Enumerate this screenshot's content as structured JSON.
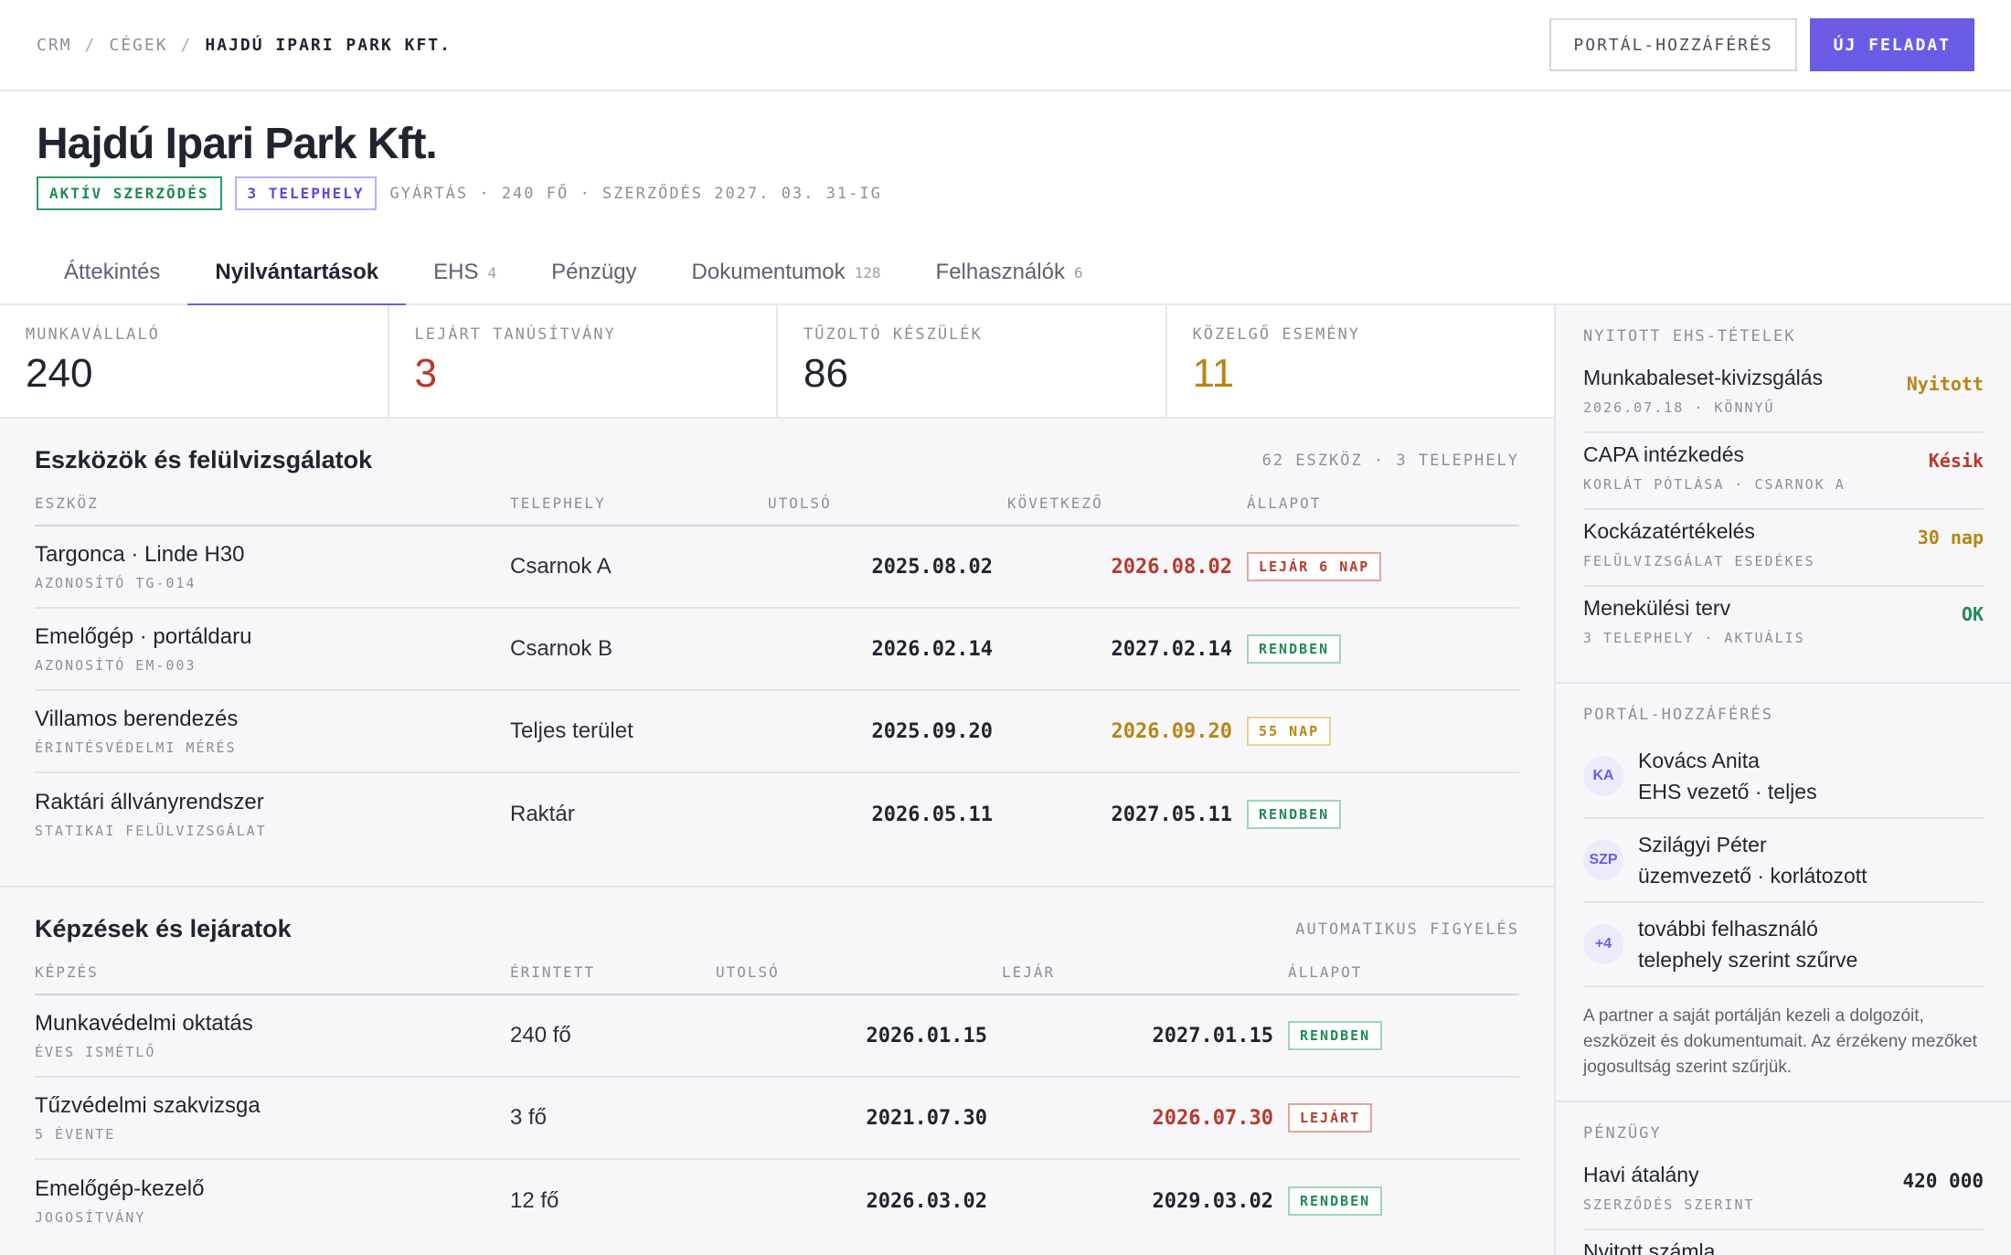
{
  "breadcrumb": {
    "root": "CRM",
    "parent": "CÉGEK",
    "current": "HAJDÚ IPARI PARK KFT.",
    "sep": "/"
  },
  "actions": {
    "portal": "PORTÁL-HOZZÁFÉRÉS",
    "new_task": "ÚJ FELADAT"
  },
  "company": {
    "name": "Hajdú Ipari Park Kft.",
    "badge_contract": "AKTÍV SZERZŐDÉS",
    "badge_sites": "3 TELEPHELY",
    "meta": "GYÁRTÁS · 240 FŐ · SZERZŐDÉS 2027. 03. 31-IG"
  },
  "tabs": [
    {
      "label": "Áttekintés",
      "count": ""
    },
    {
      "label": "Nyilvántartások",
      "count": ""
    },
    {
      "label": "EHS",
      "count": "4"
    },
    {
      "label": "Pénzügy",
      "count": ""
    },
    {
      "label": "Dokumentumok",
      "count": "128"
    },
    {
      "label": "Felhasználók",
      "count": "6"
    }
  ],
  "stats": [
    {
      "label": "MUNKAVÁLLALÓ",
      "value": "240",
      "color": "#1f2430"
    },
    {
      "label": "LEJÁRT TANÚSÍTVÁNY",
      "value": "3",
      "color": "#b8392d"
    },
    {
      "label": "TŰZOLTÓ KÉSZÜLÉK",
      "value": "86",
      "color": "#1f2430"
    },
    {
      "label": "KÖZELGŐ ESEMÉNY",
      "value": "11",
      "color": "#b88514"
    }
  ],
  "assets": {
    "title": "Eszközök és felülvizsgálatok",
    "meta": "62 ESZKÖZ · 3 TELEPHELY",
    "headers": [
      "ESZKÖZ",
      "TELEPHELY",
      "UTOLSÓ",
      "KÖVETKEZŐ",
      "ÁLLAPOT"
    ],
    "rows": [
      {
        "name": "Targonca · Linde H30",
        "sub": "AZONOSÍTÓ TG-014",
        "site": "Csarnok A",
        "last": "2025.08.02",
        "next": "2026.08.02",
        "status": "LEJÁR 6 NAP"
      },
      {
        "name": "Emelőgép · portáldaru",
        "sub": "AZONOSÍTÓ EM-003",
        "site": "Csarnok B",
        "last": "2026.02.14",
        "next": "2027.02.14",
        "status": "RENDBEN"
      },
      {
        "name": "Villamos berendezés",
        "sub": "ÉRINTÉSVÉDELMI MÉRÉS",
        "site": "Teljes terület",
        "last": "2025.09.20",
        "next": "2026.09.20",
        "status": "55 NAP"
      },
      {
        "name": "Raktári állványrendszer",
        "sub": "STATIKAI FELÜLVIZSGÁLAT",
        "site": "Raktár",
        "last": "2026.05.11",
        "next": "2027.05.11",
        "status": "RENDBEN"
      }
    ]
  },
  "trainings": {
    "title": "Képzések és lejáratok",
    "meta": "AUTOMATIKUS FIGYELÉS",
    "headers": [
      "KÉPZÉS",
      "ÉRINTETT",
      "UTOLSÓ",
      "LEJÁR",
      "ÁLLAPOT"
    ],
    "rows": [
      {
        "name": "Munkavédelmi oktatás",
        "sub": "ÉVES ISMÉTLŐ",
        "people": "240 fő",
        "last": "2026.01.15",
        "expires": "2027.01.15",
        "status": "RENDBEN"
      },
      {
        "name": "Tűzvédelmi szakvizsga",
        "sub": "5 ÉVENTE",
        "people": "3 fő",
        "last": "2021.07.30",
        "expires": "2026.07.30",
        "status": "LEJÁRT"
      },
      {
        "name": "Emelőgép-kezelő",
        "sub": "JOGOSÍTVÁNY",
        "people": "12 fő",
        "last": "2026.03.02",
        "expires": "2029.03.02",
        "status": "RENDBEN"
      }
    ]
  },
  "sidebar": {
    "ehs": {
      "label": "NYITOTT EHS-TÉTELEK",
      "items": [
        {
          "title": "Munkabaleset-kivizsgálás",
          "sub": "2026.07.18 · KÖNNYŰ",
          "status": "Nyitott"
        },
        {
          "title": "CAPA intézkedés",
          "sub": "KORLÁT PÓTLÁSA · CSARNOK A",
          "status": "Késik"
        },
        {
          "title": "Kockázatértékelés",
          "sub": "FELÜLVIZSGÁLAT ESEDÉKES",
          "status": "30 nap"
        },
        {
          "title": "Menekülési terv",
          "sub": "3 TELEPHELY · AKTUÁLIS",
          "status": "OK"
        }
      ]
    },
    "portal": {
      "label": "PORTÁL-HOZZÁFÉRÉS",
      "users": [
        {
          "initials": "KA",
          "name": "Kovács Anita",
          "role": "EHS vezető · teljes"
        },
        {
          "initials": "SZP",
          "name": "Szilágyi Péter",
          "role": "üzemvezető · korlátozott"
        },
        {
          "initials": "+4",
          "name": "további felhasználó",
          "role": "telephely szerint szűrve"
        }
      ],
      "note": "A partner a saját portálján kezeli a dolgozóit, eszközeit és dokumentumait. Az érzékeny mezőket jogosultság szerint szűrjük."
    },
    "finance": {
      "label": "PÉNZÜGY",
      "items": [
        {
          "title": "Havi átalány",
          "sub": "SZERZŐDÉS SZERINT",
          "value": "420 000"
        },
        {
          "title": "Nyitott számla",
          "sub": "",
          "value": ""
        }
      ]
    }
  }
}
